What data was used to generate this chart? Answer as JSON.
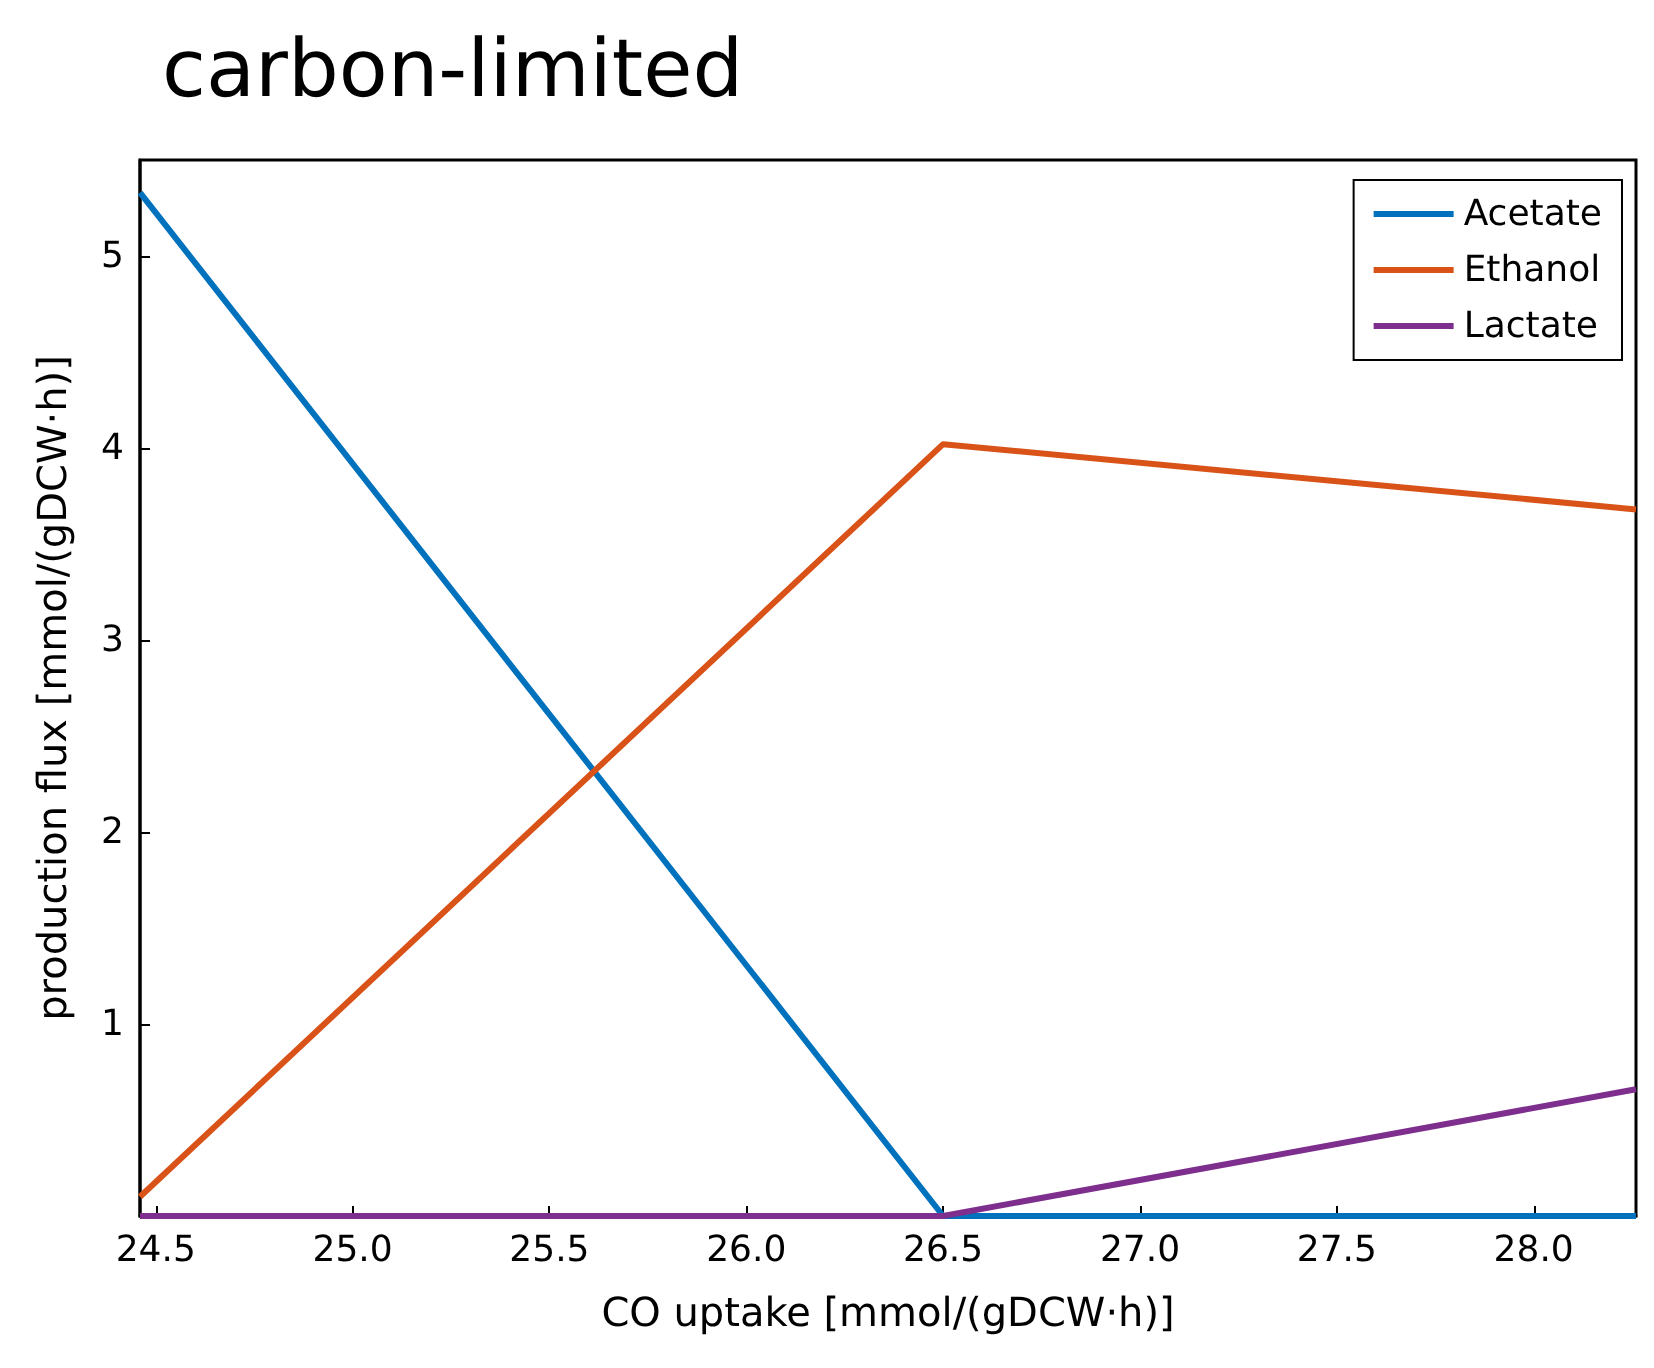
{
  "chart_data": {
    "type": "line",
    "title": "carbon-limited",
    "xlabel": "CO uptake [mmol/(gDCW·h)]",
    "ylabel": "production flux [mmol/(gDCW·h)]",
    "xlim": [
      24.46,
      28.26
    ],
    "xticks": [
      24.5,
      {
        "value": 25,
        "label": "25.0"
      },
      25.5,
      {
        "value": 26,
        "label": "26.0"
      },
      26.5,
      {
        "value": 27,
        "label": "27.0"
      },
      27.5,
      {
        "value": 28,
        "label": "28.0"
      }
    ],
    "ylim": [
      0,
      5.5
    ],
    "yticks": [
      1,
      2,
      3,
      4,
      5
    ],
    "series": [
      {
        "name": "Acetate",
        "color": "#0072bd",
        "x": [
          24.46,
          26.5,
          28.26
        ],
        "values": [
          5.33,
          0,
          0
        ]
      },
      {
        "name": "Ethanol",
        "color": "#d95319",
        "x": [
          24.46,
          26.5,
          28.26
        ],
        "values": [
          0.1,
          4.02,
          3.68
        ]
      },
      {
        "name": "Lactate",
        "color": "#7e2f8e",
        "x": [
          24.46,
          26.5,
          28.26
        ],
        "values": [
          0,
          0,
          0.66
        ]
      }
    ],
    "legend": "top right",
    "grid": false,
    "marker": "none",
    "line_style": "solid"
  }
}
